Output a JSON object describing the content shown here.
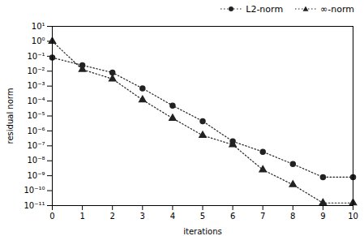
{
  "chart_data": {
    "type": "line",
    "x": [
      0,
      1,
      2,
      3,
      4,
      5,
      6,
      7,
      8,
      9,
      10
    ],
    "series": [
      {
        "name": "L2-norm",
        "color": "#222222",
        "marker": "circle",
        "line_style": "dotted",
        "values": [
          0.08,
          0.025,
          0.008,
          0.0007,
          5e-05,
          4.5e-06,
          2e-07,
          4e-08,
          6e-09,
          8e-10,
          8e-10
        ]
      },
      {
        "name": "∞-norm",
        "color": "#222222",
        "marker": "triangle",
        "line_style": "dotted",
        "values": [
          1.0,
          0.013,
          0.003,
          0.00012,
          7e-06,
          5e-07,
          1.2e-07,
          2.5e-09,
          2.5e-10,
          1.5e-11,
          1.5e-11
        ]
      }
    ],
    "xlabel": "iterations",
    "ylabel": "residual norm",
    "xlim": [
      0,
      10
    ],
    "xticks": [
      0,
      1,
      2,
      3,
      4,
      5,
      6,
      7,
      8,
      9,
      10
    ],
    "ylim": [
      1e-11,
      10
    ],
    "yticks": [
      {
        "value": 1e-11,
        "label": "10⁻¹¹"
      },
      {
        "value": 1e-10,
        "label": "10⁻¹⁰"
      },
      {
        "value": 1e-09,
        "label": "10⁻⁹"
      },
      {
        "value": 1e-08,
        "label": "10⁻⁸"
      },
      {
        "value": 1e-07,
        "label": "10⁻⁷"
      },
      {
        "value": 1e-06,
        "label": "10⁻⁶"
      },
      {
        "value": 1e-05,
        "label": "10⁻⁵"
      },
      {
        "value": 0.0001,
        "label": "10⁻⁴"
      },
      {
        "value": 0.001,
        "label": "10⁻³"
      },
      {
        "value": 0.01,
        "label": "10⁻²"
      },
      {
        "value": 0.1,
        "label": "10⁻¹"
      },
      {
        "value": 1,
        "label": "10⁰"
      },
      {
        "value": 10,
        "label": "10¹"
      }
    ],
    "log": "y",
    "legend": "upper right",
    "grid": false
  }
}
